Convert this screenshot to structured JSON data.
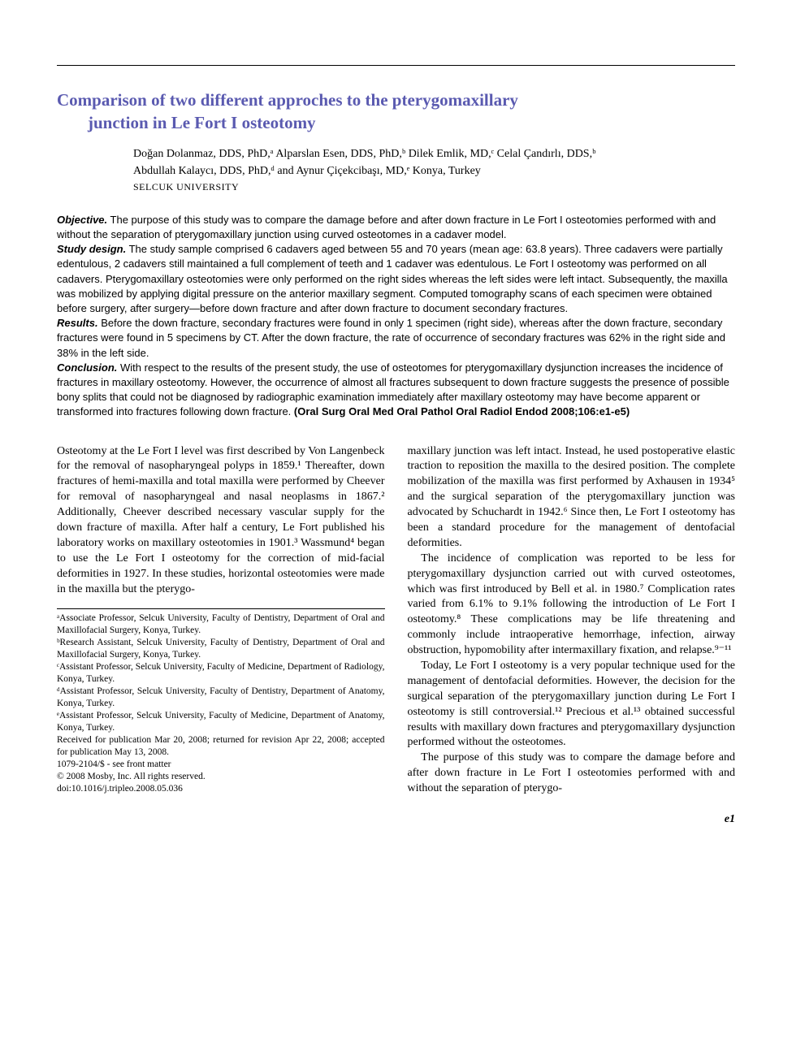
{
  "title_line1": "Comparison of two different approches to the pterygomaxillary",
  "title_line2": "junction in Le Fort I osteotomy",
  "authors_line1": "Doğan Dolanmaz, DDS, PhD,ᵃ Alparslan Esen, DDS, PhD,ᵇ Dilek Emlik, MD,ᶜ Celal Çandırlı, DDS,ᵇ",
  "authors_line2": "Abdullah Kalaycı, DDS, PhD,ᵈ and Aynur Çiçekcibaşı, MD,ᵉ Konya, Turkey",
  "affiliation_caps": "SELCUK UNIVERSITY",
  "abstract": {
    "objective_label": "Objective.",
    "objective_text": " The purpose of this study was to compare the damage before and after down fracture in Le Fort I osteotomies performed with and without the separation of pterygomaxillary junction using curved osteotomes in a cadaver model.",
    "study_label": "Study design.",
    "study_text": " The study sample comprised 6 cadavers aged between 55 and 70 years (mean age: 63.8 years). Three cadavers were partially edentulous, 2 cadavers still maintained a full complement of teeth and 1 cadaver was edentulous. Le Fort I osteotomy was performed on all cadavers. Pterygomaxillary osteotomies were only performed on the right sides whereas the left sides were left intact. Subsequently, the maxilla was mobilized by applying digital pressure on the anterior maxillary segment. Computed tomography scans of each specimen were obtained before surgery, after surgery—before down fracture and after down fracture to document secondary fractures.",
    "results_label": "Results.",
    "results_text": " Before the down fracture, secondary fractures were found in only 1 specimen (right side), whereas after the down fracture, secondary fractures were found in 5 specimens by CT. After the down fracture, the rate of occurrence of secondary fractures was 62% in the right side and 38% in the left side.",
    "conclusion_label": "Conclusion.",
    "conclusion_text": " With respect to the results of the present study, the use of osteotomes for pterygomaxillary dysjunction increases the incidence of fractures in maxillary osteotomy. However, the occurrence of almost all fractures subsequent to down fracture suggests the presence of possible bony splits that could not be diagnosed by radiographic examination immediately after maxillary osteotomy may have become apparent or transformed into fractures following down fracture. ",
    "citation": "(Oral Surg Oral Med Oral Pathol Oral Radiol Endod 2008;106:e1-e5)"
  },
  "body": {
    "p1": "Osteotomy at the Le Fort I level was first described by Von Langenbeck for the removal of nasopharyngeal polyps in 1859.¹ Thereafter, down fractures of hemi-maxilla and total maxilla were performed by Cheever for removal of nasopharyngeal and nasal neoplasms in 1867.² Additionally, Cheever described necessary vascular supply for the down fracture of maxilla. After half a century, Le Fort published his laboratory works on maxillary osteotomies in 1901.³ Wassmund⁴ began to use the Le Fort I osteotomy for the correction of mid-facial deformities in 1927. In these studies, horizontal osteotomies were made in the maxilla but the pterygo-",
    "p2": "maxillary junction was left intact. Instead, he used postoperative elastic traction to reposition the maxilla to the desired position. The complete mobilization of the maxilla was first performed by Axhausen in 1934⁵ and the surgical separation of the pterygomaxillary junction was advocated by Schuchardt in 1942.⁶ Since then, Le Fort I osteotomy has been a standard procedure for the management of dentofacial deformities.",
    "p3": "The incidence of complication was reported to be less for pterygomaxillary dysjunction carried out with curved osteotomes, which was first introduced by Bell et al. in 1980.⁷ Complication rates varied from 6.1% to 9.1% following the introduction of Le Fort I osteotomy.⁸ These complications may be life threatening and commonly include intraoperative hemorrhage, infection, airway obstruction, hypomobility after intermaxillary fixation, and relapse.⁹⁻¹¹",
    "p4": "Today, Le Fort I osteotomy is a very popular technique used for the management of dentofacial deformities. However, the decision for the surgical separation of the pterygomaxillary junction during Le Fort I osteotomy is still controversial.¹² Precious et al.¹³ obtained successful results with maxillary down fractures and pterygomaxillary dysjunction performed without the osteotomes.",
    "p5": "The purpose of this study was to compare the damage before and after down fracture in Le Fort I osteotomies performed with and without the separation of pterygo-"
  },
  "footnotes": {
    "a": "ᵃAssociate Professor, Selcuk University, Faculty of Dentistry, Department of Oral and Maxillofacial Surgery, Konya, Turkey.",
    "b": "ᵇResearch Assistant, Selcuk University, Faculty of Dentistry, Department of Oral and Maxillofacial Surgery, Konya, Turkey.",
    "c": "ᶜAssistant Professor, Selcuk University, Faculty of Medicine, Department of Radiology, Konya, Turkey.",
    "d": "ᵈAssistant Professor, Selcuk University, Faculty of Dentistry, Department of Anatomy, Konya, Turkey.",
    "e": "ᵉAssistant Professor, Selcuk University, Faculty of Medicine, Department of Anatomy, Konya, Turkey.",
    "received": "Received for publication Mar 20, 2008; returned for revision Apr 22, 2008; accepted for publication May 13, 2008.",
    "issn": "1079-2104/$ - see front matter",
    "copyright": "© 2008 Mosby, Inc. All rights reserved.",
    "doi": "doi:10.1016/j.tripleo.2008.05.036"
  },
  "page_number": "e1",
  "colors": {
    "title": "#5a5ab0",
    "text": "#000000",
    "background": "#ffffff"
  }
}
